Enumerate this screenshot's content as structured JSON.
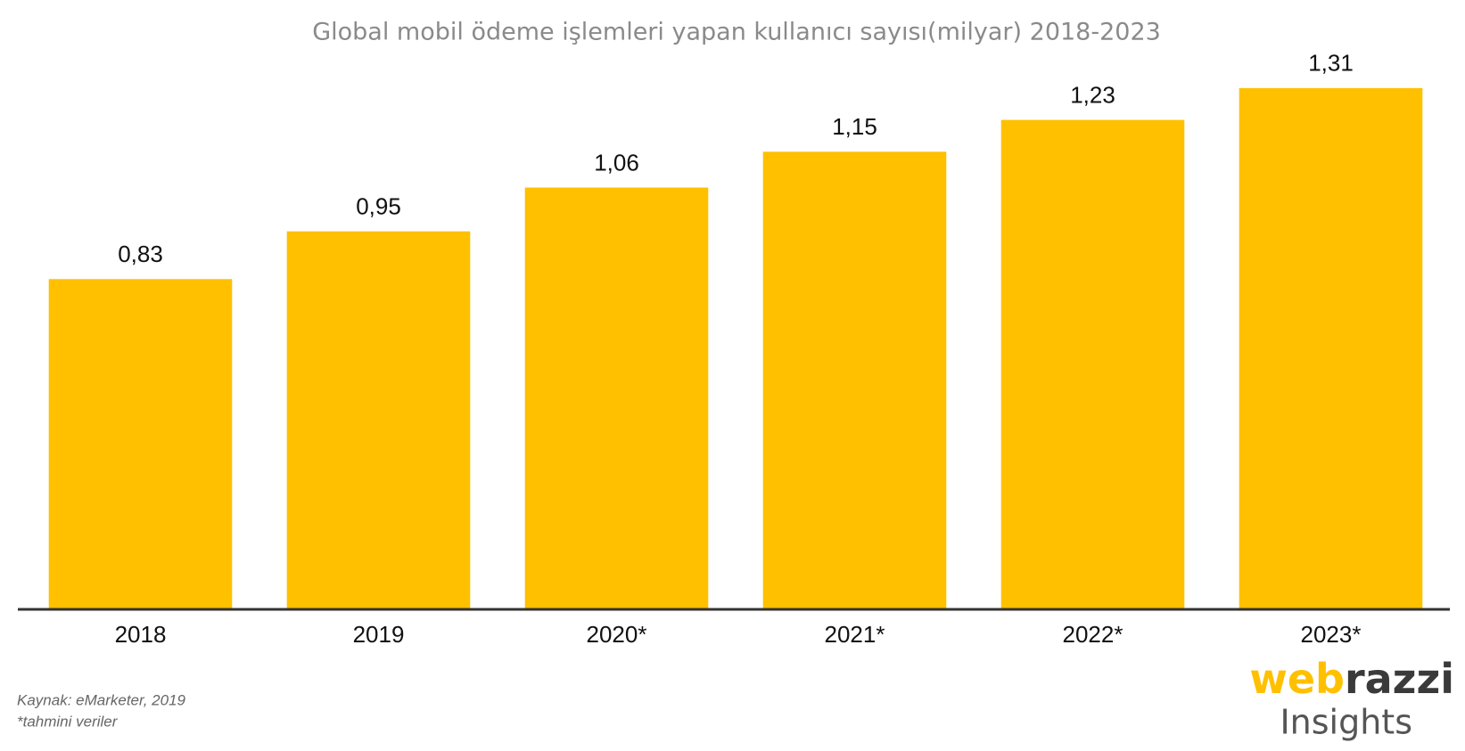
{
  "chart_data": {
    "type": "bar",
    "title": "Global mobil ödeme işlemleri yapan kullanıcı sayısı(milyar) 2018-2023",
    "categories": [
      "2018",
      "2019",
      "2020*",
      "2021*",
      "2022*",
      "2023*"
    ],
    "values": [
      0.83,
      0.95,
      1.06,
      1.15,
      1.23,
      1.31
    ],
    "value_labels": [
      "0,83",
      "0,95",
      "1,06",
      "1,15",
      "1,23",
      "1,31"
    ],
    "color": "#ffc000",
    "ylim": [
      0,
      1.5
    ],
    "grid": false
  },
  "footer": {
    "source": "Kaynak: eMarketer, 2019",
    "note": "*tahmini veriler"
  },
  "logo": {
    "brand_part1": "web",
    "brand_part2": "razzi",
    "subtitle": "Insights"
  }
}
